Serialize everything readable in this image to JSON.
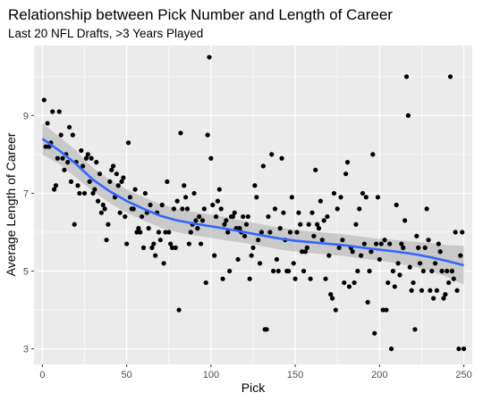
{
  "chart_data": {
    "type": "scatter",
    "title": "Relationship between Pick Number and Length of Career",
    "subtitle": "Last 20 NFL Drafts, >3 Years Played",
    "xlabel": "Pick",
    "ylabel": "Average Length of Career",
    "xlim": [
      -5,
      255
    ],
    "ylim": [
      2.6,
      10.8
    ],
    "xticks": [
      0,
      50,
      100,
      150,
      200,
      250
    ],
    "yticks": [
      3,
      5,
      7,
      9
    ],
    "grid": true,
    "colors": {
      "panel": "#ebebeb",
      "grid": "#ffffff",
      "points": "#000000",
      "smooth_line": "#3366ff",
      "ribbon": "#b3b3b3"
    },
    "points": [
      [
        1,
        9.4
      ],
      [
        2,
        8.2
      ],
      [
        3,
        8.8
      ],
      [
        4,
        8.2
      ],
      [
        5,
        8.3
      ],
      [
        6,
        9.1
      ],
      [
        7,
        7.1
      ],
      [
        8,
        7.2
      ],
      [
        9,
        7.9
      ],
      [
        10,
        9.1
      ],
      [
        11,
        8.5
      ],
      [
        12,
        7.9
      ],
      [
        13,
        7.6
      ],
      [
        14,
        8.0
      ],
      [
        15,
        7.8
      ],
      [
        16,
        8.7
      ],
      [
        17,
        7.3
      ],
      [
        18,
        8.5
      ],
      [
        19,
        6.2
      ],
      [
        20,
        7.8
      ],
      [
        21,
        7.2
      ],
      [
        22,
        7.0
      ],
      [
        23,
        8.1
      ],
      [
        24,
        7.7
      ],
      [
        25,
        7.0
      ],
      [
        26,
        7.9
      ],
      [
        27,
        8.0
      ],
      [
        28,
        7.3
      ],
      [
        29,
        7.9
      ],
      [
        30,
        7.0
      ],
      [
        31,
        7.1
      ],
      [
        32,
        7.8
      ],
      [
        33,
        6.8
      ],
      [
        34,
        7.5
      ],
      [
        35,
        6.5
      ],
      [
        36,
        6.7
      ],
      [
        37,
        6.6
      ],
      [
        38,
        5.8
      ],
      [
        39,
        6.2
      ],
      [
        40,
        7.3
      ],
      [
        41,
        7.6
      ],
      [
        42,
        7.7
      ],
      [
        43,
        6.9
      ],
      [
        44,
        7.5
      ],
      [
        45,
        7.2
      ],
      [
        46,
        6.5
      ],
      [
        47,
        7.3
      ],
      [
        48,
        7.4
      ],
      [
        49,
        6.4
      ],
      [
        50,
        5.7
      ],
      [
        51,
        8.3
      ],
      [
        52,
        6.9
      ],
      [
        53,
        6.6
      ],
      [
        54,
        6.6
      ],
      [
        55,
        7.1
      ],
      [
        56,
        6.0
      ],
      [
        57,
        6.1
      ],
      [
        58,
        6.0
      ],
      [
        59,
        6.4
      ],
      [
        60,
        5.6
      ],
      [
        61,
        7.0
      ],
      [
        62,
        6.5
      ],
      [
        63,
        6.1
      ],
      [
        64,
        6.7
      ],
      [
        65,
        5.6
      ],
      [
        66,
        5.7
      ],
      [
        67,
        5.4
      ],
      [
        68,
        6.5
      ],
      [
        69,
        6.0
      ],
      [
        70,
        5.8
      ],
      [
        71,
        6.7
      ],
      [
        72,
        5.2
      ],
      [
        73,
        6.0
      ],
      [
        74,
        7.3
      ],
      [
        75,
        6.0
      ],
      [
        76,
        5.7
      ],
      [
        77,
        5.6
      ],
      [
        78,
        6.6
      ],
      [
        79,
        5.6
      ],
      [
        80,
        6.8
      ],
      [
        81,
        4.0
      ],
      [
        82,
        8.55
      ],
      [
        83,
        6.6
      ],
      [
        84,
        7.2
      ],
      [
        85,
        6.9
      ],
      [
        86,
        6.6
      ],
      [
        87,
        5.7
      ],
      [
        88,
        6.0
      ],
      [
        89,
        6.2
      ],
      [
        90,
        7.0
      ],
      [
        91,
        6.3
      ],
      [
        92,
        6.1
      ],
      [
        93,
        6.4
      ],
      [
        94,
        5.7
      ],
      [
        95,
        6.3
      ],
      [
        96,
        6.6
      ],
      [
        97,
        4.7
      ],
      [
        98,
        8.5
      ],
      [
        99,
        10.5
      ],
      [
        100,
        7.9
      ],
      [
        101,
        6.7
      ],
      [
        102,
        5.4
      ],
      [
        103,
        6.4
      ],
      [
        104,
        6.8
      ],
      [
        105,
        7.1
      ],
      [
        106,
        6.6
      ],
      [
        107,
        4.8
      ],
      [
        108,
        6.2
      ],
      [
        109,
        6.3
      ],
      [
        110,
        6.0
      ],
      [
        111,
        5.0
      ],
      [
        112,
        6.4
      ],
      [
        113,
        6.4
      ],
      [
        114,
        6.5
      ],
      [
        115,
        6.1
      ],
      [
        116,
        5.3
      ],
      [
        117,
        6.1
      ],
      [
        118,
        6.0
      ],
      [
        119,
        6.4
      ],
      [
        120,
        5.9
      ],
      [
        121,
        6.2
      ],
      [
        122,
        6.4
      ],
      [
        123,
        4.8
      ],
      [
        124,
        5.4
      ],
      [
        125,
        5.6
      ],
      [
        126,
        7.2
      ],
      [
        127,
        6.9
      ],
      [
        128,
        5.8
      ],
      [
        129,
        5.2
      ],
      [
        130,
        6.0
      ],
      [
        131,
        7.7
      ],
      [
        132,
        3.5
      ],
      [
        133,
        3.5
      ],
      [
        134,
        6.4
      ],
      [
        135,
        6.0
      ],
      [
        136,
        8.0
      ],
      [
        137,
        5.0
      ],
      [
        138,
        6.6
      ],
      [
        139,
        5.3
      ],
      [
        140,
        5.0
      ],
      [
        141,
        6.1
      ],
      [
        142,
        7.9
      ],
      [
        143,
        6.5
      ],
      [
        144,
        5.8
      ],
      [
        145,
        5.0
      ],
      [
        146,
        5.0
      ],
      [
        147,
        6.0
      ],
      [
        148,
        6.9
      ],
      [
        149,
        5.2
      ],
      [
        150,
        4.8
      ],
      [
        151,
        6.0
      ],
      [
        152,
        6.5
      ],
      [
        153,
        6.2
      ],
      [
        154,
        5.5
      ],
      [
        155,
        5.0
      ],
      [
        156,
        5.5
      ],
      [
        157,
        5.6
      ],
      [
        158,
        6.2
      ],
      [
        159,
        4.8
      ],
      [
        160,
        6.5
      ],
      [
        161,
        5.9
      ],
      [
        162,
        7.6
      ],
      [
        163,
        6.2
      ],
      [
        164,
        6.1
      ],
      [
        165,
        6.8
      ],
      [
        166,
        5.8
      ],
      [
        167,
        6.3
      ],
      [
        168,
        4.8
      ],
      [
        169,
        6.4
      ],
      [
        170,
        5.4
      ],
      [
        171,
        4.4
      ],
      [
        172,
        4.3
      ],
      [
        173,
        7.0
      ],
      [
        174,
        4.0
      ],
      [
        175,
        6.6
      ],
      [
        176,
        5.6
      ],
      [
        177,
        6.9
      ],
      [
        178,
        5.8
      ],
      [
        179,
        4.7
      ],
      [
        180,
        7.5
      ],
      [
        181,
        7.8
      ],
      [
        182,
        4.6
      ],
      [
        183,
        5.6
      ],
      [
        184,
        5.5
      ],
      [
        185,
        4.7
      ],
      [
        186,
        6.2
      ],
      [
        187,
        5.0
      ],
      [
        188,
        6.6
      ],
      [
        189,
        5.4
      ],
      [
        190,
        7.0
      ],
      [
        191,
        5.7
      ],
      [
        192,
        6.9
      ],
      [
        193,
        4.2
      ],
      [
        194,
        5.0
      ],
      [
        195,
        5.5
      ],
      [
        196,
        8.0
      ],
      [
        197,
        3.4
      ],
      [
        198,
        5.7
      ],
      [
        199,
        6.9
      ],
      [
        200,
        5.3
      ],
      [
        201,
        5.7
      ],
      [
        202,
        4.0
      ],
      [
        203,
        5.8
      ],
      [
        204,
        4.0
      ],
      [
        205,
        4.7
      ],
      [
        206,
        5.7
      ],
      [
        207,
        3.0
      ],
      [
        208,
        5.0
      ],
      [
        209,
        4.6
      ],
      [
        210,
        6.7
      ],
      [
        211,
        5.2
      ],
      [
        212,
        4.9
      ],
      [
        213,
        5.7
      ],
      [
        214,
        5.6
      ],
      [
        215,
        6.3
      ],
      [
        216,
        10.0
      ],
      [
        217,
        9.0
      ],
      [
        218,
        5.1
      ],
      [
        219,
        4.5
      ],
      [
        220,
        4.7
      ],
      [
        221,
        3.5
      ],
      [
        222,
        5.9
      ],
      [
        223,
        5.6
      ],
      [
        224,
        5.2
      ],
      [
        225,
        4.5
      ],
      [
        226,
        5.0
      ],
      [
        227,
        5.6
      ],
      [
        228,
        6.6
      ],
      [
        229,
        5.8
      ],
      [
        230,
        4.5
      ],
      [
        231,
        5.0
      ],
      [
        232,
        4.3
      ],
      [
        233,
        5.2
      ],
      [
        234,
        4.5
      ],
      [
        235,
        5.7
      ],
      [
        236,
        5.5
      ],
      [
        237,
        5.0
      ],
      [
        238,
        4.3
      ],
      [
        239,
        4.4
      ],
      [
        240,
        5.0
      ],
      [
        241,
        4.7
      ],
      [
        242,
        10.0
      ],
      [
        243,
        5.0
      ],
      [
        244,
        4.8
      ],
      [
        245,
        6.0
      ],
      [
        246,
        4.5
      ],
      [
        247,
        3.0
      ],
      [
        248,
        5.4
      ],
      [
        249,
        6.0
      ],
      [
        250,
        3.0
      ]
    ],
    "smooth": {
      "x": [
        0,
        10,
        20,
        30,
        40,
        50,
        60,
        70,
        80,
        90,
        100,
        110,
        120,
        130,
        140,
        150,
        160,
        170,
        180,
        190,
        200,
        210,
        220,
        230,
        240,
        250
      ],
      "y": [
        8.4,
        8.1,
        7.75,
        7.35,
        7.05,
        6.8,
        6.6,
        6.42,
        6.3,
        6.22,
        6.15,
        6.08,
        6.0,
        5.92,
        5.84,
        5.78,
        5.74,
        5.7,
        5.66,
        5.6,
        5.55,
        5.5,
        5.44,
        5.36,
        5.26,
        5.15
      ],
      "lower": [
        8.0,
        7.75,
        7.4,
        7.05,
        6.75,
        6.5,
        6.3,
        6.12,
        6.0,
        5.92,
        5.85,
        5.78,
        5.72,
        5.64,
        5.56,
        5.5,
        5.46,
        5.42,
        5.38,
        5.32,
        5.27,
        5.2,
        5.12,
        5.0,
        4.85,
        4.65
      ],
      "upper": [
        8.8,
        8.45,
        8.1,
        7.65,
        7.35,
        7.1,
        6.9,
        6.72,
        6.6,
        6.52,
        6.45,
        6.38,
        6.28,
        6.2,
        6.12,
        6.06,
        6.02,
        5.98,
        5.94,
        5.88,
        5.83,
        5.8,
        5.76,
        5.72,
        5.67,
        5.65
      ]
    }
  }
}
